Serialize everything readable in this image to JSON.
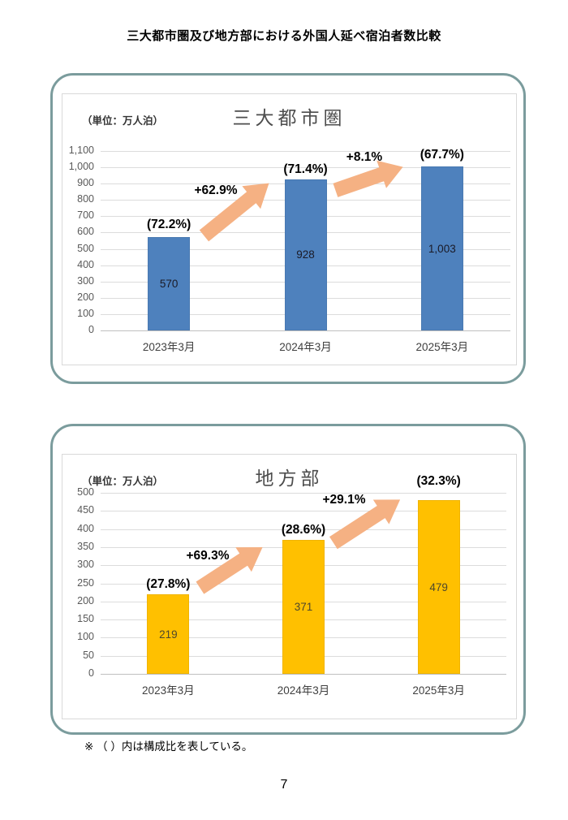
{
  "page": {
    "title": "三大都市圏及び地方部における外国人延べ宿泊者数比較",
    "footnote": "※ （ ）内は構成比を表している。",
    "page_number": "7"
  },
  "colors": {
    "arrow": "#F5B183",
    "panel_border": "#7B9C9D",
    "bar_blue": "#4E81BD",
    "bar_gold": "#FFC000",
    "gridline": "#DCDCDC"
  },
  "chart_data": [
    {
      "type": "bar",
      "title": "三大都市圏",
      "unit_label": "（単位：万人泊）",
      "categories": [
        "2023年3月",
        "2024年3月",
        "2025年3月"
      ],
      "values": [
        570,
        928,
        1003
      ],
      "value_labels": [
        "570",
        "928",
        "1,003"
      ],
      "share_labels": [
        "(72.2%)",
        "(71.4%)",
        "(67.7%)"
      ],
      "growth_labels": [
        "+62.9%",
        "+8.1%"
      ],
      "xlabel": "",
      "ylabel": "",
      "ylim": [
        0,
        1100
      ],
      "ytick_step": 100,
      "grid": true,
      "legend": "none",
      "bar_color": "#4E81BD",
      "value_label_color": "#1a1a26"
    },
    {
      "type": "bar",
      "title": "地方部",
      "unit_label": "（単位：万人泊）",
      "categories": [
        "2023年3月",
        "2024年3月",
        "2025年3月"
      ],
      "values": [
        219,
        371,
        479
      ],
      "value_labels": [
        "219",
        "371",
        "479"
      ],
      "share_labels": [
        "(27.8%)",
        "(28.6%)",
        "(32.3%)"
      ],
      "growth_labels": [
        "+69.3%",
        "+29.1%"
      ],
      "xlabel": "",
      "ylabel": "",
      "ylim": [
        0,
        500
      ],
      "ytick_step": 50,
      "grid": true,
      "legend": "none",
      "bar_color": "#FFC000",
      "value_label_color": "#4e472c"
    }
  ]
}
